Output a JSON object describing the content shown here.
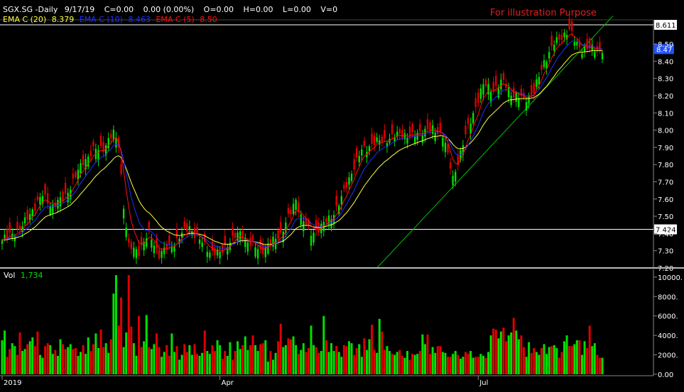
{
  "header": {
    "symbol": "SGX.SG -Daily",
    "date": "9/17/19",
    "change": "C=0.00",
    "change_pct": "0.00 (0.00%)",
    "open": "O=0.00",
    "high": "H=0.00",
    "low": "L=0.00",
    "volume": "V=0",
    "ema20_label": "EMA C (20)",
    "ema20_value": "8.379",
    "ema10_label": "EMA C (10)",
    "ema10_value": "8.463",
    "ema5_label": "EMA C (5)",
    "ema5_value": "8.50"
  },
  "annotation": "For illustration Purpose",
  "volume_panel": {
    "label": "Vol",
    "value": "1,734"
  },
  "colors": {
    "up": "#00e000",
    "down": "#e00000",
    "ema20": "#ffff40",
    "ema10": "#2030ff",
    "ema5": "#ff1010",
    "trendline": "#00c000",
    "hline": "#ffffff",
    "annotation": "#e02020"
  },
  "chart_data": [
    {
      "type": "candlestick",
      "y_ticks": [
        7.2,
        7.3,
        7.4,
        7.5,
        7.6,
        7.7,
        7.8,
        7.9,
        8.0,
        8.1,
        8.2,
        8.3,
        8.4,
        8.5
      ],
      "y_tick_labels": [
        "7.20",
        "7.30",
        "7.40",
        "7.50",
        "7.60",
        "7.70",
        "7.80",
        "7.90",
        "8.00",
        "8.10",
        "8.20",
        "8.30",
        "8.40",
        "8.50"
      ],
      "ylim": [
        7.2,
        8.64
      ],
      "x_tick_labels": [
        "2019",
        "Apr",
        "Jul"
      ],
      "horizontal_lines": [
        {
          "value": 8.611,
          "label": "8.611"
        },
        {
          "value": 7.424,
          "label": "7.424"
        }
      ],
      "last_price_label": "8.47",
      "last_price_value": 8.47,
      "trendline": {
        "from_bar": 148,
        "from_value": 7.2,
        "to_bar": 230,
        "to_value": 8.63
      },
      "close_anchors": [
        [
          0,
          7.36
        ],
        [
          4,
          7.4
        ],
        [
          8,
          7.44
        ],
        [
          12,
          7.54
        ],
        [
          16,
          7.62
        ],
        [
          20,
          7.56
        ],
        [
          24,
          7.6
        ],
        [
          28,
          7.7
        ],
        [
          32,
          7.82
        ],
        [
          36,
          7.88
        ],
        [
          40,
          7.9
        ],
        [
          44,
          7.98
        ],
        [
          46,
          7.92
        ],
        [
          48,
          7.56
        ],
        [
          50,
          7.32
        ],
        [
          54,
          7.3
        ],
        [
          58,
          7.4
        ],
        [
          62,
          7.28
        ],
        [
          66,
          7.32
        ],
        [
          70,
          7.38
        ],
        [
          74,
          7.44
        ],
        [
          78,
          7.36
        ],
        [
          82,
          7.3
        ],
        [
          86,
          7.28
        ],
        [
          90,
          7.36
        ],
        [
          94,
          7.4
        ],
        [
          98,
          7.34
        ],
        [
          102,
          7.3
        ],
        [
          106,
          7.34
        ],
        [
          110,
          7.4
        ],
        [
          114,
          7.52
        ],
        [
          116,
          7.6
        ],
        [
          118,
          7.5
        ],
        [
          122,
          7.4
        ],
        [
          126,
          7.44
        ],
        [
          130,
          7.5
        ],
        [
          134,
          7.6
        ],
        [
          138,
          7.76
        ],
        [
          142,
          7.88
        ],
        [
          146,
          7.92
        ],
        [
          150,
          7.94
        ],
        [
          154,
          7.96
        ],
        [
          158,
          7.98
        ],
        [
          162,
          7.96
        ],
        [
          166,
          8.0
        ],
        [
          170,
          8.0
        ],
        [
          174,
          7.98
        ],
        [
          178,
          7.72
        ],
        [
          182,
          7.92
        ],
        [
          186,
          8.1
        ],
        [
          190,
          8.26
        ],
        [
          194,
          8.24
        ],
        [
          198,
          8.28
        ],
        [
          202,
          8.2
        ],
        [
          206,
          8.18
        ],
        [
          210,
          8.22
        ],
        [
          214,
          8.4
        ],
        [
          218,
          8.5
        ],
        [
          222,
          8.56
        ],
        [
          224,
          8.58
        ],
        [
          226,
          8.52
        ],
        [
          229,
          8.47
        ]
      ],
      "volume": {
        "y_ticks": [
          0,
          2000,
          4000,
          6000,
          8000,
          10000
        ],
        "y_tick_labels": [
          "0.00",
          "2000.",
          "4000.",
          "6000.",
          "8000.",
          "10000."
        ],
        "ylim": [
          0,
          10500
        ],
        "values": [
          3500,
          4500,
          1800,
          2600,
          3200,
          2900,
          2000,
          4300,
          2400,
          2600,
          3100,
          3400,
          3800,
          2900,
          4400,
          2000,
          1700,
          2900,
          3200,
          3000,
          2100,
          2500,
          1900,
          3600,
          3100,
          2600,
          2800,
          3100,
          2600,
          2700,
          1900,
          2300,
          3000,
          2100,
          3800,
          2400,
          3100,
          4200,
          2700,
          4600,
          2800,
          3200,
          2200,
          3600,
          8300,
          10200,
          5000,
          7900,
          2800,
          4300,
          10200,
          4900,
          3200,
          1900,
          6000,
          2800,
          3400,
          6100,
          2800,
          2600,
          3100,
          4200,
          2800,
          1800,
          2300,
          3000,
          1900,
          4200,
          2300,
          2900,
          1500,
          2000,
          3100,
          2300,
          3000,
          2000,
          3100,
          2100,
          1900,
          2200,
          4500,
          2400,
          2100,
          3000,
          2400,
          3500,
          3000,
          1600,
          2400,
          1900,
          3300,
          1500,
          2400,
          3400,
          2600,
          3000,
          3900,
          2500,
          3000,
          4000,
          3000,
          2400,
          3100,
          3200,
          3500,
          1300,
          2400,
          1500,
          2200,
          3400,
          5200,
          2800,
          3000,
          3700,
          3600,
          3900,
          3000,
          2100,
          2500,
          3200,
          2300,
          2700,
          5000,
          3000,
          2800,
          2200,
          2400,
          6000,
          3500,
          2300,
          3200,
          2400,
          2900,
          2300,
          1800,
          3000,
          2900,
          3400,
          3200,
          2000,
          2700,
          3100,
          1800,
          3700,
          2500,
          3600,
          5100,
          2500,
          2200,
          5700,
          4400,
          2500,
          2900,
          2400,
          2100,
          2000,
          2300,
          2500,
          1900,
          1700,
          2400,
          1500,
          2100,
          2000,
          2100,
          2400,
          4100,
          3100,
          4100,
          2100,
          2800,
          2200,
          2900,
          2900,
          2300,
          2200,
          1800,
          1800,
          2100,
          2400,
          2000,
          1600,
          1800,
          2300,
          2100,
          2400,
          1700,
          1800,
          1800,
          2100,
          1900,
          1700,
          2300,
          4000,
          4700,
          4600,
          3700,
          4400,
          4800,
          3400,
          4000,
          4300,
          5800,
          4500,
          3600,
          4000,
          2800,
          1800,
          3300,
          2200,
          2700,
          2300,
          2000,
          2700,
          3100,
          2100,
          2800,
          2900,
          3000,
          2700,
          1700,
          2300,
          3400,
          4000,
          2900,
          2900,
          3100,
          3500,
          3500,
          2000,
          3400,
          2700,
          5000,
          2900,
          3200,
          2000,
          1700,
          1700
        ]
      }
    }
  ]
}
